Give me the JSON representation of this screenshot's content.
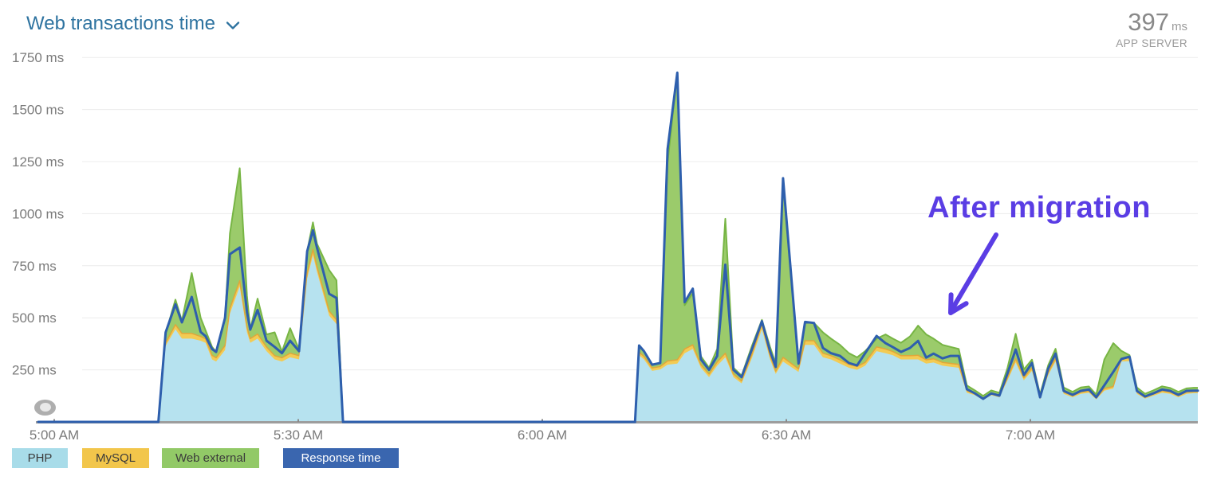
{
  "header": {
    "title": "Web transactions time",
    "current_value": "397",
    "current_unit": "ms",
    "scope_label": "APP SERVER"
  },
  "annotation": {
    "text": "After migration",
    "color": "#5a3de4"
  },
  "legend": {
    "items": [
      {
        "label": "PHP",
        "color": "#a8dce9",
        "text_color": "#3b3b3b"
      },
      {
        "label": "MySQL",
        "color": "#f2c64b",
        "text_color": "#3b3b3b"
      },
      {
        "label": "Web external",
        "color": "#92c967",
        "text_color": "#3b3b3b"
      },
      {
        "label": "Response time",
        "color": "#3a66af",
        "text_color": "#ffffff"
      }
    ]
  },
  "chart_data": {
    "type": "area",
    "title": "Web transactions time",
    "unit": "ms",
    "legend_position": "bottom",
    "grid": "horizontal",
    "y_axis": {
      "min": 0,
      "max": 1912,
      "ticks": [
        {
          "value": 1750,
          "label": "1750 ms"
        },
        {
          "value": 1500,
          "label": "1500 ms"
        },
        {
          "value": 1250,
          "label": "1250 ms"
        },
        {
          "value": 1000,
          "label": "1000 ms"
        },
        {
          "value": 750,
          "label": "750 ms"
        },
        {
          "value": 500,
          "label": "500 ms"
        },
        {
          "value": 250,
          "label": "250 ms"
        }
      ]
    },
    "x_axis": {
      "unit": "minutes after 5:00 AM",
      "ticks": [
        {
          "minute": 0,
          "label": "5:00 AM"
        },
        {
          "minute": 30,
          "label": "5:30 AM"
        },
        {
          "minute": 60,
          "label": "6:00 AM"
        },
        {
          "minute": 90,
          "label": "6:30 AM"
        },
        {
          "minute": 120,
          "label": "7:00 AM"
        }
      ]
    },
    "series_meta": [
      {
        "name": "PHP",
        "type": "stacked-area",
        "color": "#b6e2ef"
      },
      {
        "name": "MySQL",
        "type": "stacked-area",
        "color": "#f3cb53",
        "edge_color": "#e0a63a"
      },
      {
        "name": "Web external",
        "type": "stacked-area",
        "color": "#9bcb6b",
        "edge_color": "#77b544"
      },
      {
        "name": "Response time",
        "type": "line",
        "color": "#2e5fad"
      }
    ],
    "colors": {
      "grid": "#ececec",
      "axis_line": "#9d9d9d",
      "axis_label": "#7b7b7b",
      "tick_mark": "#8a8a8a"
    },
    "point_format": [
      "minute",
      "php_ms",
      "mysql_ms",
      "web_external_ms",
      "response_time_ms"
    ],
    "segments": [
      {
        "points": [
          [
            12.8,
            0,
            0,
            0,
            0
          ],
          [
            13.7,
            365,
            15,
            45,
            430
          ],
          [
            14.9,
            445,
            22,
            120,
            565
          ],
          [
            15.7,
            400,
            25,
            60,
            478
          ],
          [
            16.9,
            400,
            25,
            290,
            600
          ],
          [
            18.0,
            390,
            20,
            90,
            432
          ],
          [
            18.6,
            380,
            20,
            40,
            412
          ],
          [
            19.4,
            300,
            20,
            40,
            350
          ],
          [
            19.9,
            290,
            18,
            28,
            336
          ],
          [
            21.0,
            345,
            22,
            135,
            500
          ],
          [
            21.6,
            520,
            25,
            360,
            806
          ],
          [
            22.8,
            650,
            28,
            540,
            837
          ],
          [
            23.7,
            430,
            25,
            150,
            527
          ],
          [
            24.1,
            380,
            20,
            45,
            443
          ],
          [
            25.0,
            400,
            22,
            170,
            538
          ],
          [
            26.1,
            340,
            20,
            60,
            390
          ],
          [
            27.1,
            300,
            18,
            112,
            360
          ],
          [
            28.0,
            290,
            18,
            30,
            330
          ],
          [
            29.0,
            310,
            20,
            120,
            390
          ],
          [
            30.1,
            300,
            18,
            30,
            340
          ],
          [
            31.1,
            690,
            25,
            105,
            820
          ],
          [
            31.8,
            800,
            28,
            130,
            920
          ],
          [
            32.3,
            720,
            25,
            110,
            836
          ],
          [
            33.8,
            510,
            22,
            197,
            615
          ],
          [
            34.7,
            470,
            20,
            190,
            595
          ],
          [
            35.5,
            0,
            0,
            0,
            0
          ]
        ]
      },
      {
        "extend_to_right_edge": true,
        "points": [
          [
            71.4,
            0,
            0,
            0,
            0
          ],
          [
            71.9,
            320,
            15,
            32,
            367
          ],
          [
            72.5,
            300,
            15,
            25,
            340
          ],
          [
            73.5,
            245,
            14,
            16,
            275
          ],
          [
            74.5,
            252,
            14,
            17,
            283
          ],
          [
            75.4,
            275,
            18,
            952,
            1310
          ],
          [
            76.6,
            280,
            18,
            1380,
            1677
          ],
          [
            77.5,
            330,
            20,
            210,
            575
          ],
          [
            78.5,
            350,
            20,
            250,
            640
          ],
          [
            79.5,
            260,
            15,
            40,
            300
          ],
          [
            80.5,
            215,
            15,
            30,
            250
          ],
          [
            81.5,
            270,
            18,
            62,
            317
          ],
          [
            82.5,
            310,
            20,
            645,
            755
          ],
          [
            83.5,
            215,
            15,
            30,
            250
          ],
          [
            84.5,
            185,
            12,
            25,
            215
          ],
          [
            85.8,
            310,
            18,
            40,
            352
          ],
          [
            87.0,
            445,
            25,
            20,
            483
          ],
          [
            88.0,
            300,
            18,
            42,
            340
          ],
          [
            88.7,
            230,
            14,
            36,
            264
          ],
          [
            89.6,
            290,
            20,
            840,
            1170
          ],
          [
            91.5,
            240,
            15,
            30,
            280
          ],
          [
            92.3,
            370,
            20,
            90,
            480
          ],
          [
            93.4,
            370,
            20,
            85,
            475
          ],
          [
            94.5,
            310,
            20,
            100,
            355
          ],
          [
            95.5,
            300,
            18,
            82,
            330
          ],
          [
            96.6,
            280,
            18,
            72,
            317
          ],
          [
            97.7,
            260,
            16,
            54,
            283
          ],
          [
            98.7,
            250,
            16,
            44,
            271
          ],
          [
            99.7,
            270,
            16,
            54,
            330
          ],
          [
            101.1,
            340,
            20,
            40,
            413
          ],
          [
            102.2,
            330,
            20,
            70,
            378
          ],
          [
            103.1,
            320,
            18,
            62,
            359
          ],
          [
            104.1,
            300,
            18,
            62,
            336
          ],
          [
            105.2,
            300,
            18,
            92,
            355
          ],
          [
            106.2,
            300,
            20,
            142,
            389
          ],
          [
            107.2,
            280,
            18,
            122,
            309
          ],
          [
            108.1,
            285,
            18,
            97,
            328
          ],
          [
            109.2,
            270,
            16,
            84,
            305
          ],
          [
            110.2,
            265,
            16,
            79,
            317
          ],
          [
            111.2,
            260,
            16,
            74,
            317
          ],
          [
            112.2,
            140,
            10,
            25,
            157
          ],
          [
            113.2,
            128,
            8,
            15,
            137
          ],
          [
            114.2,
            105,
            8,
            12,
            111
          ],
          [
            115.2,
            128,
            8,
            15,
            137
          ],
          [
            116.2,
            118,
            8,
            14,
            126
          ],
          [
            117.2,
            200,
            12,
            48,
            233
          ],
          [
            118.2,
            285,
            18,
            120,
            348
          ],
          [
            119.2,
            200,
            12,
            40,
            225
          ],
          [
            120.2,
            245,
            14,
            40,
            283
          ],
          [
            121.2,
            108,
            8,
            15,
            118
          ],
          [
            122.2,
            225,
            12,
            35,
            256
          ],
          [
            123.1,
            290,
            16,
            45,
            328
          ],
          [
            124.1,
            135,
            8,
            22,
            149
          ],
          [
            125.2,
            118,
            8,
            18,
            130
          ],
          [
            126.2,
            135,
            8,
            22,
            149
          ],
          [
            127.2,
            140,
            8,
            22,
            156
          ],
          [
            128.1,
            108,
            8,
            15,
            118
          ],
          [
            129.1,
            150,
            10,
            140,
            176
          ],
          [
            130.2,
            160,
            10,
            208,
            240
          ],
          [
            131.2,
            290,
            16,
            35,
            302
          ],
          [
            132.2,
            292,
            15,
            13,
            313
          ],
          [
            133.1,
            135,
            8,
            22,
            149
          ],
          [
            134.1,
            112,
            8,
            15,
            122
          ],
          [
            135.1,
            125,
            8,
            18,
            137
          ],
          [
            136.2,
            140,
            9,
            22,
            156
          ],
          [
            137.2,
            135,
            8,
            20,
            149
          ],
          [
            138.2,
            118,
            8,
            18,
            130
          ],
          [
            139.2,
            135,
            8,
            18,
            149
          ],
          [
            140.1,
            138,
            8,
            18,
            150
          ]
        ]
      }
    ]
  }
}
